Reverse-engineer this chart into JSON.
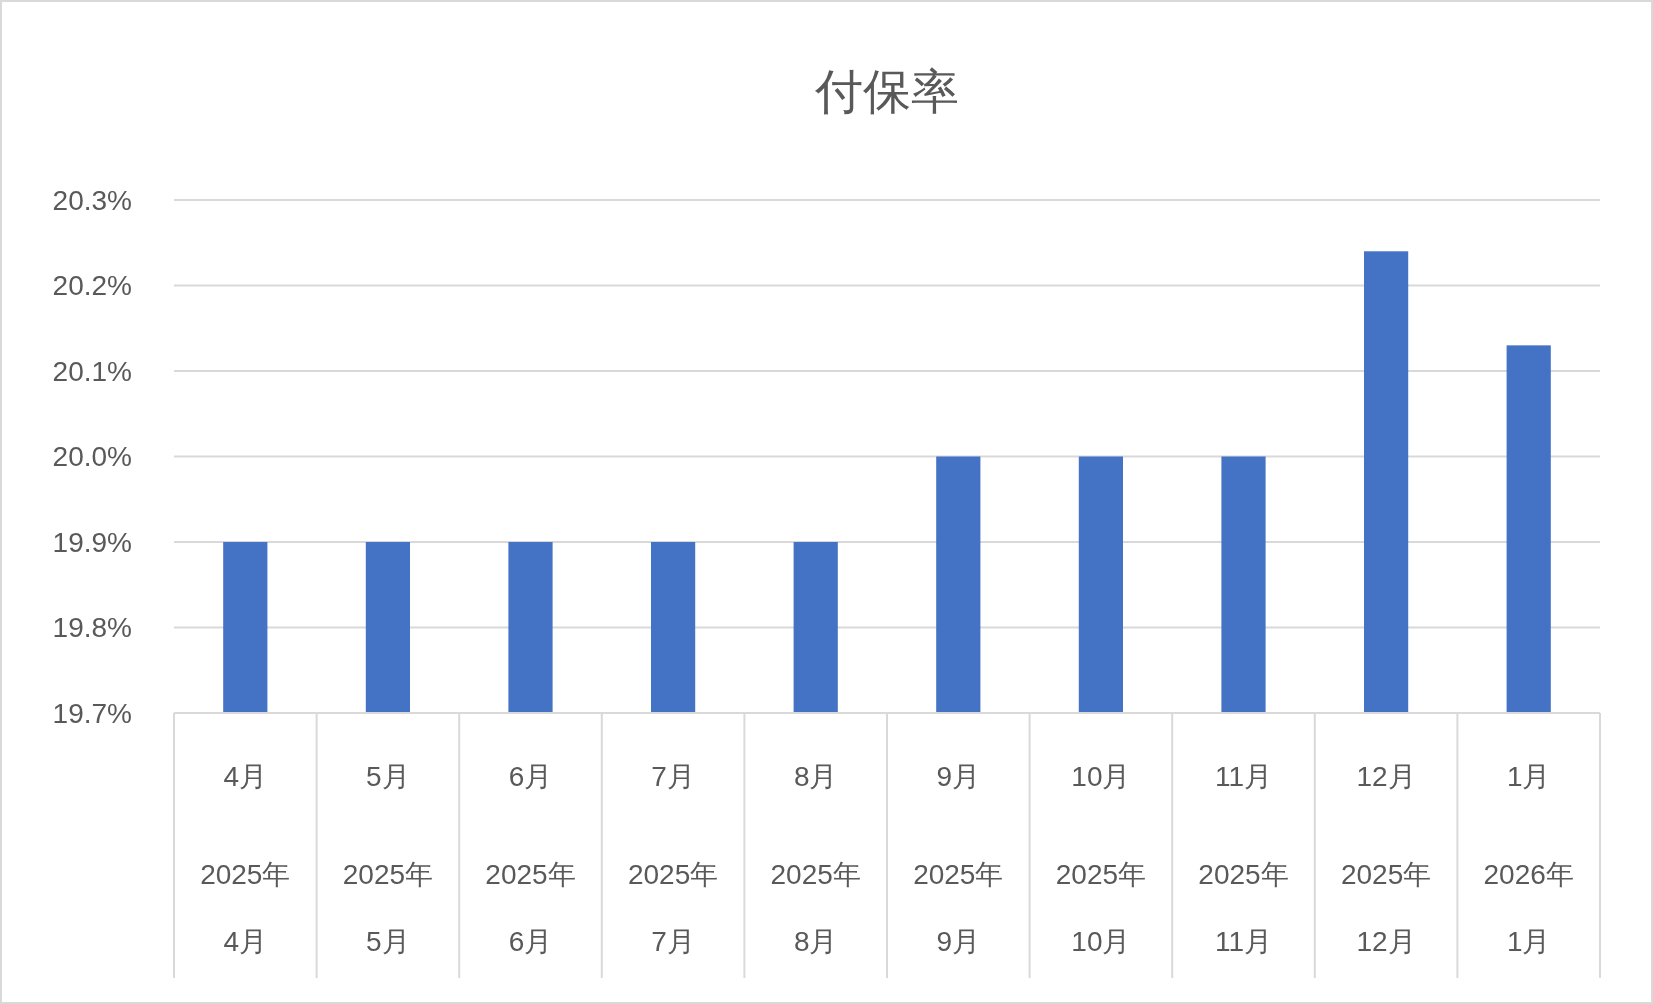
{
  "chart_data": {
    "type": "bar",
    "title": "付保率",
    "categories": [
      "4月\n2025年\n4月",
      "5月\n2025年\n5月",
      "6月\n2025年\n6月",
      "7月\n2025年\n7月",
      "8月\n2025年\n8月",
      "9月\n2025年\n9月",
      "10月\n2025年\n10月",
      "11月\n2025年\n11月",
      "12月\n2025年\n12月",
      "1月\n2026年\n1月"
    ],
    "values": [
      19.9,
      19.9,
      19.9,
      19.9,
      19.9,
      20.0,
      20.0,
      20.0,
      20.24,
      20.13
    ],
    "color": "#4472c4",
    "ylim": [
      19.7,
      20.3
    ],
    "yticks": [
      {
        "value": 19.7,
        "label": "19.7%"
      },
      {
        "value": 19.8,
        "label": "19.8%"
      },
      {
        "value": 19.9,
        "label": "19.9%"
      },
      {
        "value": 20.0,
        "label": "20.0%"
      },
      {
        "value": 20.1,
        "label": "20.1%"
      },
      {
        "value": 20.2,
        "label": "20.2%"
      },
      {
        "value": 20.3,
        "label": "20.3%"
      }
    ],
    "grid": "y"
  }
}
